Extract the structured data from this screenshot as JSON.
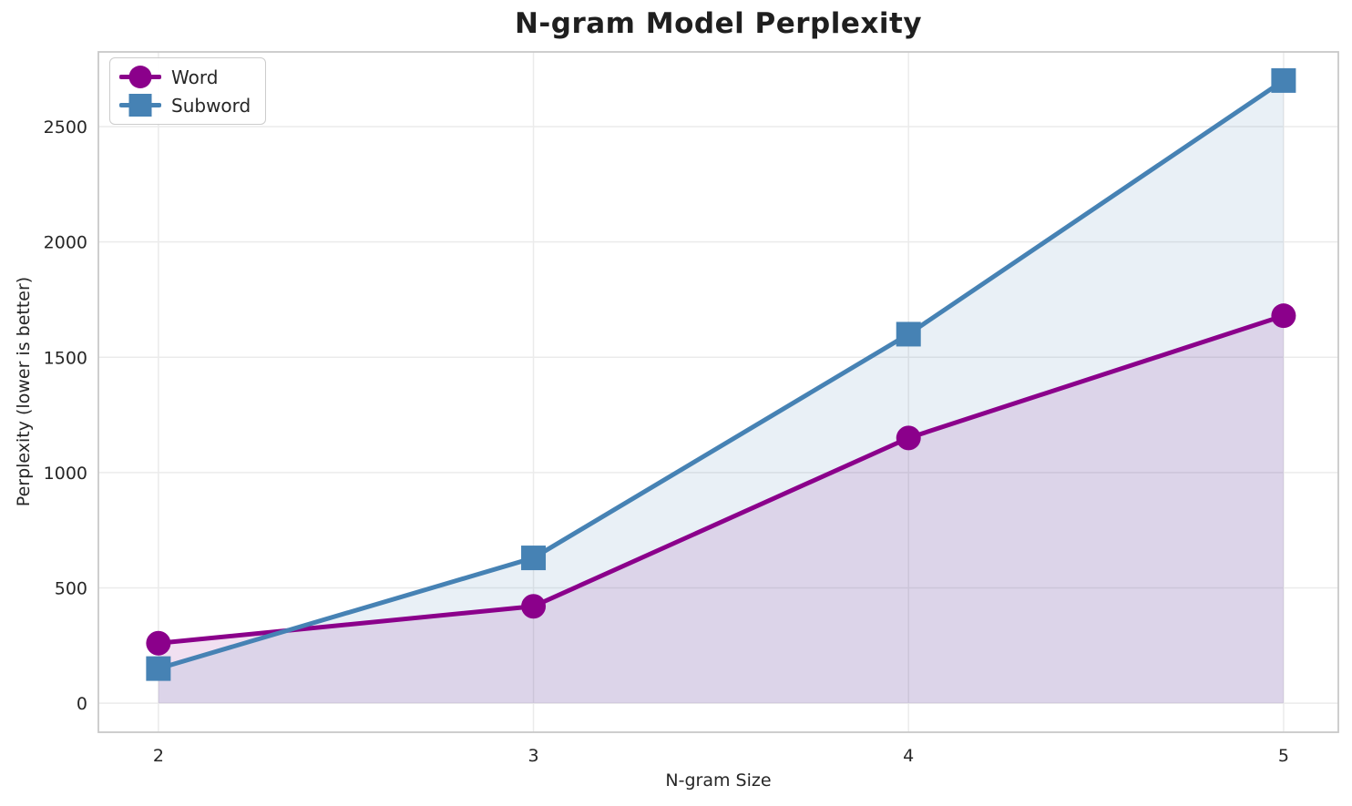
{
  "chart_data": {
    "type": "line",
    "title": "N-gram Model Perplexity",
    "xlabel": "N-gram Size",
    "ylabel": "Perplexity (lower is better)",
    "x": [
      2,
      3,
      4,
      5
    ],
    "x_tick_labels": [
      "2",
      "3",
      "4",
      "5"
    ],
    "y_ticks": [
      0,
      500,
      1000,
      1500,
      2000,
      2500
    ],
    "y_tick_labels": [
      "0",
      "500",
      "1000",
      "1500",
      "2000",
      "2500"
    ],
    "xlim": [
      1.84,
      5.146
    ],
    "ylim": [
      -126,
      2824
    ],
    "grid": true,
    "legend_position": "upper-left",
    "fill_to_zero": true,
    "fill_alpha": 0.12,
    "series": [
      {
        "name": "Word",
        "marker": "circle",
        "color": "#8B008B",
        "values": [
          260,
          420,
          1150,
          1680
        ]
      },
      {
        "name": "Subword",
        "marker": "square",
        "color": "#4682B4",
        "values": [
          150,
          630,
          1600,
          2700
        ]
      }
    ],
    "colors": {
      "grid": "#ebebeb",
      "spine": "#c9c9c9",
      "text": "#262626",
      "title": "#1f1f1f",
      "background": "#ffffff"
    }
  }
}
